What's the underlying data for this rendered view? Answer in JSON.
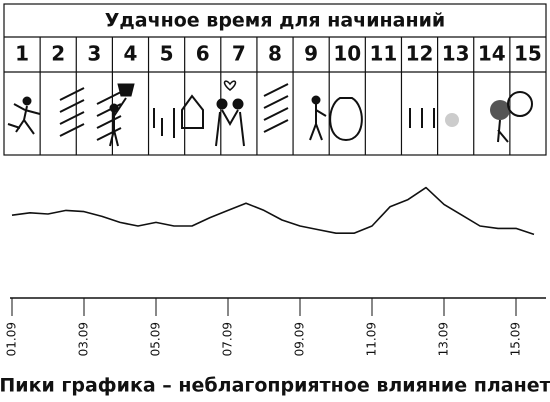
{
  "header": {
    "title": "Удачное время для начинаний"
  },
  "table": {
    "days": [
      "1",
      "2",
      "3",
      "4",
      "5",
      "6",
      "7",
      "8",
      "9",
      "10",
      "11",
      "12",
      "13",
      "14",
      "15"
    ]
  },
  "chart_data": {
    "type": "line",
    "caption": "Пики графика – неблагоприятное влияние планет",
    "categories": [
      "01.09",
      null,
      null,
      null,
      "03.09",
      null,
      null,
      null,
      "05.09",
      null,
      null,
      null,
      "07.09",
      null,
      null,
      null,
      "09.09",
      null,
      null,
      null,
      "11.09",
      null,
      null,
      null,
      "13.09",
      null,
      null,
      null,
      "15.09",
      null
    ],
    "values": [
      69,
      71,
      70,
      73,
      72,
      68,
      63,
      60,
      63,
      60,
      60,
      67,
      73,
      79,
      73,
      65,
      60,
      57,
      54,
      54,
      60,
      76,
      82,
      92,
      78,
      69,
      60,
      58,
      58,
      53
    ],
    "color": "#111111",
    "ylim": [
      0,
      100
    ]
  }
}
